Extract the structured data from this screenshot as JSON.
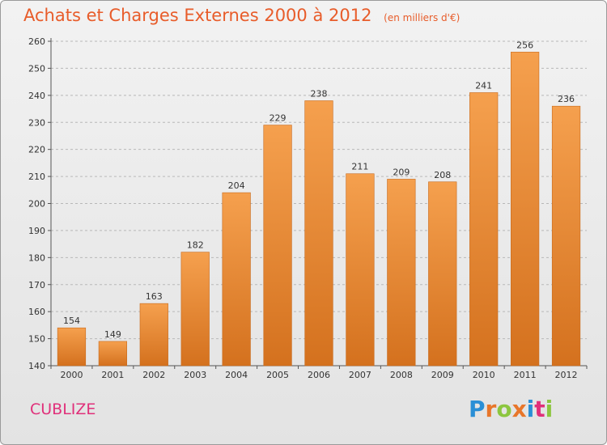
{
  "title": "Achats et Charges Externes 2000 à 2012",
  "subtitle": "(en milliers d'€)",
  "commune": "CUBLIZE",
  "logo": {
    "text": "Proxiti",
    "letters": [
      {
        "ch": "P",
        "color": "#2a8fd6"
      },
      {
        "ch": "r",
        "color": "#e8762a"
      },
      {
        "ch": "o",
        "color": "#8cc63f"
      },
      {
        "ch": "x",
        "color": "#e8762a"
      },
      {
        "ch": "i",
        "color": "#2a8fd6"
      },
      {
        "ch": "t",
        "color": "#e0307a"
      },
      {
        "ch": "i",
        "color": "#8cc63f"
      }
    ]
  },
  "colors": {
    "bar_top": "#f5a04e",
    "bar_bottom": "#d4711e",
    "bar_edge": "#c86a1c",
    "title": "#e85c2a",
    "commune": "#e0307a"
  },
  "chart_data": {
    "type": "bar",
    "categories": [
      "2000",
      "2001",
      "2002",
      "2003",
      "2004",
      "2005",
      "2006",
      "2007",
      "2008",
      "2009",
      "2010",
      "2011",
      "2012"
    ],
    "values": [
      154,
      149,
      163,
      182,
      204,
      229,
      238,
      211,
      209,
      208,
      241,
      256,
      236
    ],
    "ylim": [
      140,
      260
    ],
    "yticks": [
      140,
      150,
      160,
      170,
      180,
      190,
      200,
      210,
      220,
      230,
      240,
      250,
      260
    ],
    "grid": "horizontal dashed",
    "legend": "none"
  }
}
